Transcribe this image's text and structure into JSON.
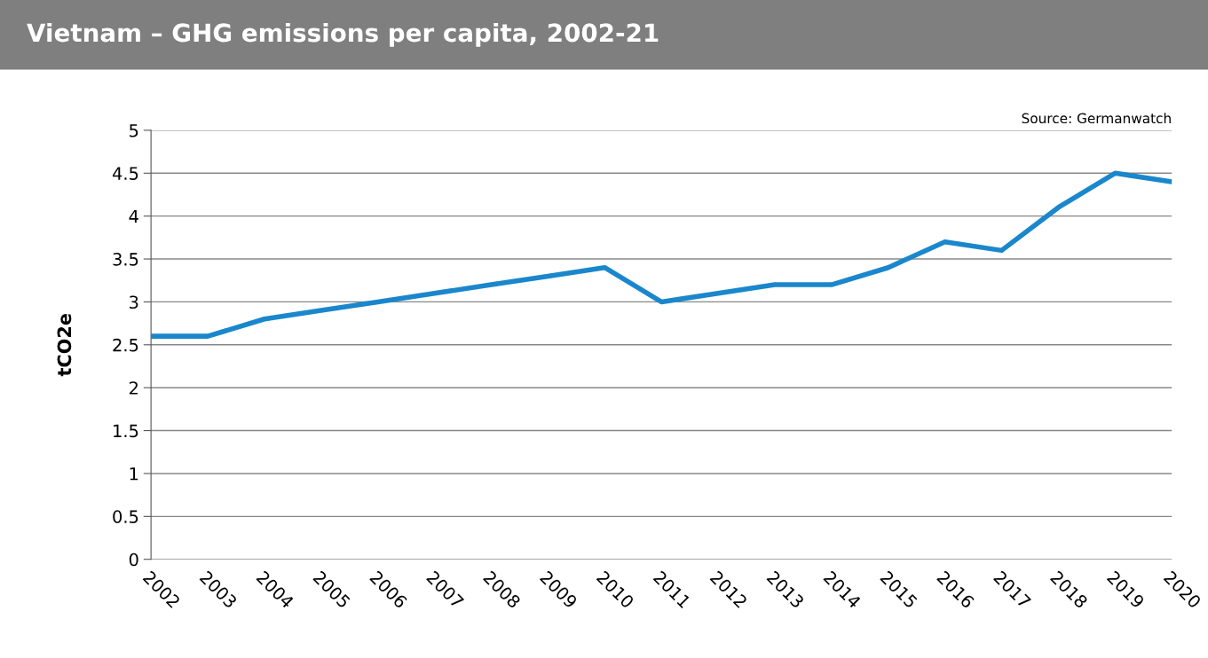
{
  "chart_data": {
    "type": "line",
    "title": "Vietnam – GHG emissions per capita, 2002-21",
    "ylabel": "tCO2e",
    "annotations": [
      "Source: Germanwatch"
    ],
    "categories": [
      "2002",
      "2003",
      "2004",
      "2005",
      "2006",
      "2007",
      "2008",
      "2009",
      "2010",
      "2011",
      "2012",
      "2013",
      "2014",
      "2015",
      "2016",
      "2017",
      "2018",
      "2019",
      "2020"
    ],
    "series": [
      {
        "color": "#1a87cc",
        "values": [
          2.6,
          2.6,
          2.8,
          2.9,
          3.0,
          3.1,
          3.2,
          3.3,
          3.4,
          3.0,
          3.1,
          3.2,
          3.2,
          3.4,
          3.7,
          3.6,
          4.1,
          4.5,
          4.4
        ]
      }
    ],
    "ylim": [
      0,
      5
    ],
    "yticks": [
      0,
      0.5,
      1,
      1.5,
      2,
      2.5,
      3,
      3.5,
      4,
      4.5,
      5
    ],
    "grid": "y",
    "marker": "none",
    "line_style": "solid"
  }
}
